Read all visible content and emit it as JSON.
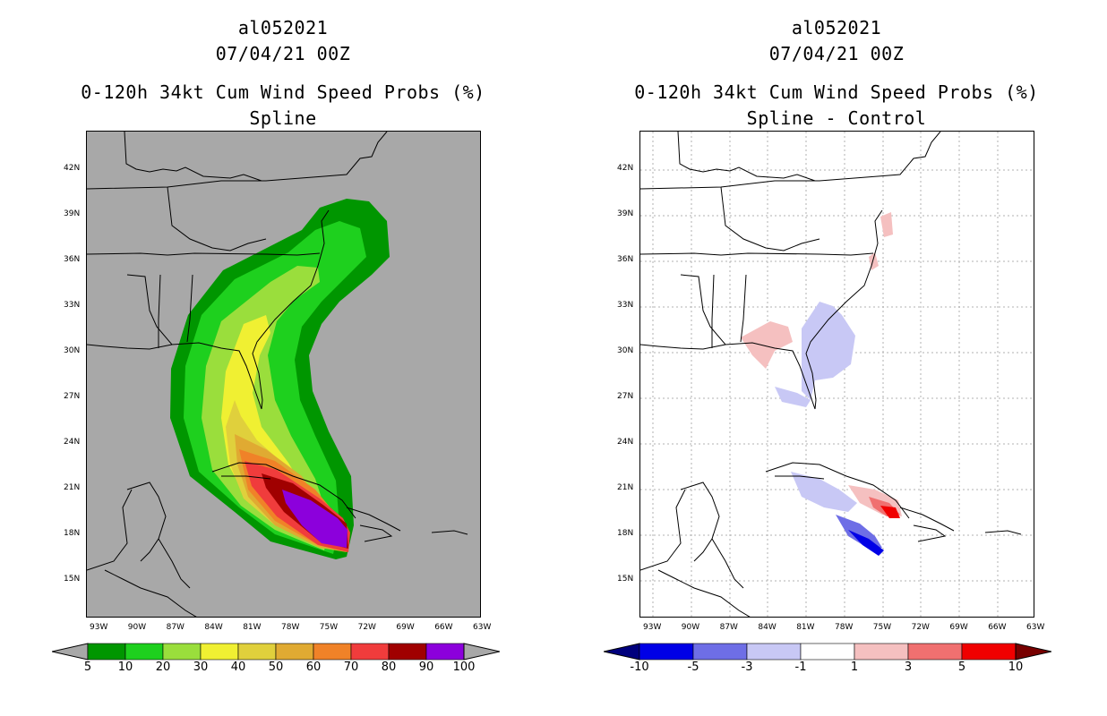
{
  "left_panel": {
    "storm_id": "al052021",
    "datetime": "07/04/21 00Z",
    "product": "0-120h 34kt Cum Wind Speed Probs (%)",
    "subtitle": "Spline",
    "background": "#a8a8a8"
  },
  "right_panel": {
    "storm_id": "al052021",
    "datetime": "07/04/21 00Z",
    "product": "0-120h 34kt Cum Wind Speed Probs (%)",
    "subtitle": "Spline - Control",
    "background": "#ffffff"
  },
  "axes": {
    "lon_range": [
      -94,
      -63
    ],
    "lat_range": [
      12.5,
      45
    ],
    "lon_ticks": [
      "93W",
      "90W",
      "87W",
      "84W",
      "81W",
      "78W",
      "75W",
      "72W",
      "69W",
      "66W",
      "63W"
    ],
    "lat_ticks": [
      "42N",
      "39N",
      "36N",
      "33N",
      "30N",
      "27N",
      "24N",
      "21N",
      "18N",
      "15N"
    ]
  },
  "left_colorbar": {
    "labels": [
      "5",
      "10",
      "20",
      "30",
      "40",
      "50",
      "60",
      "70",
      "80",
      "90",
      "100"
    ],
    "colors": [
      "#009600",
      "#1ed01e",
      "#9ade3c",
      "#f0f032",
      "#e0d03c",
      "#e0aa32",
      "#f08228",
      "#f03c3c",
      "#a00000",
      "#8c00dc"
    ],
    "under_color": "#a8a8a8",
    "over_color": "#a8a8a8"
  },
  "right_colorbar": {
    "labels": [
      "-10",
      "-5",
      "-3",
      "-1",
      "1",
      "3",
      "5",
      "10"
    ],
    "colors": [
      "#0000e6",
      "#6e6ee6",
      "#c8c8f5",
      "#ffffff",
      "#f5c0c0",
      "#f07070",
      "#f00000"
    ],
    "under_color": "#00007d",
    "over_color": "#780000"
  }
}
